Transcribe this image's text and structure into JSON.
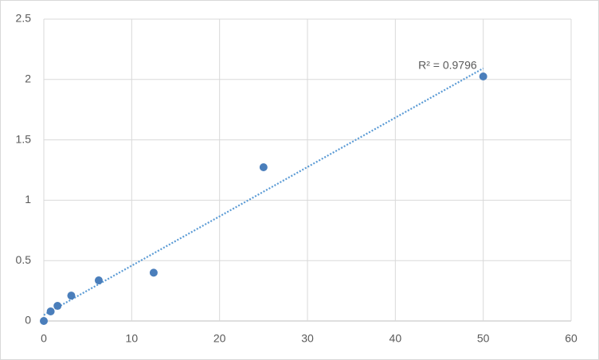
{
  "chart_data": {
    "type": "scatter",
    "x": [
      0,
      0.78,
      1.56,
      3.125,
      6.25,
      12.5,
      25,
      50
    ],
    "series": [
      {
        "color": "#4a7ebb",
        "values": [
          0,
          0.079,
          0.125,
          0.21,
          0.336,
          0.4,
          1.273,
          2.025
        ]
      }
    ],
    "xlim": [
      0,
      60
    ],
    "xticks": [
      0,
      10,
      20,
      30,
      40,
      50,
      60
    ],
    "ylim": [
      0,
      2.5
    ],
    "yticks": [
      0,
      0.5,
      1,
      1.5,
      2,
      2.5
    ],
    "grid": true,
    "trendline": "linear",
    "trendline_color": "#5b9bd5",
    "annotation": "R² = 0.9796"
  }
}
